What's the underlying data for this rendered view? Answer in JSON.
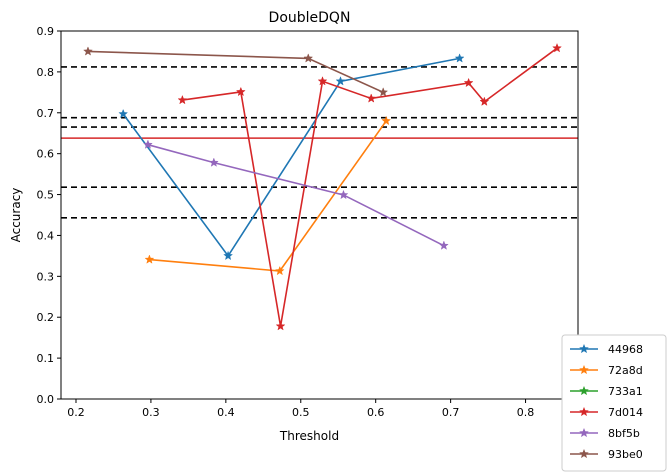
{
  "chart_data": {
    "type": "line",
    "title": "DoubleDQN",
    "xlabel": "Threshold",
    "ylabel": "Accuracy",
    "xlim": [
      0.18,
      0.87
    ],
    "ylim": [
      0.0,
      0.9
    ],
    "xticks": [
      0.2,
      0.3,
      0.4,
      0.5,
      0.6,
      0.7,
      0.8
    ],
    "xtick_labels": [
      "0.2",
      "0.3",
      "0.4",
      "0.5",
      "0.6",
      "0.7",
      "0.8"
    ],
    "yticks": [
      0.0,
      0.1,
      0.2,
      0.3,
      0.4,
      0.5,
      0.6,
      0.7,
      0.8,
      0.9
    ],
    "ytick_labels": [
      "0.0",
      "0.1",
      "0.2",
      "0.3",
      "0.4",
      "0.5",
      "0.6",
      "0.7",
      "0.8",
      "0.9"
    ],
    "grid": false,
    "legend_position": "outside-bottom-right",
    "hlines_dashed": [
      0.812,
      0.688,
      0.665,
      0.518,
      0.443
    ],
    "hlines_dashed_color": "#000000",
    "hline_solid": 0.638,
    "hline_solid_color": "#d62728",
    "marker": "star",
    "series": [
      {
        "name": "44968",
        "color": "#1f77b4",
        "x": [
          0.263,
          0.403,
          0.553,
          0.712
        ],
        "y": [
          0.697,
          0.35,
          0.777,
          0.833
        ]
      },
      {
        "name": "72a8d",
        "color": "#ff7f0e",
        "x": [
          0.298,
          0.472,
          0.614
        ],
        "y": [
          0.341,
          0.313,
          0.68
        ]
      },
      {
        "name": "733a1",
        "color": "#2ca02c",
        "x": [],
        "y": []
      },
      {
        "name": "7d014",
        "color": "#d62728",
        "x": [
          0.342,
          0.42,
          0.473,
          0.529,
          0.594,
          0.724,
          0.745,
          0.842
        ],
        "y": [
          0.731,
          0.751,
          0.178,
          0.777,
          0.735,
          0.773,
          0.727,
          0.858
        ]
      },
      {
        "name": "8bf5b",
        "color": "#9467bd",
        "x": [
          0.296,
          0.384,
          0.557,
          0.691
        ],
        "y": [
          0.622,
          0.578,
          0.499,
          0.375
        ]
      },
      {
        "name": "93be0",
        "color": "#8c564b",
        "x": [
          0.216,
          0.51,
          0.61
        ],
        "y": [
          0.85,
          0.833,
          0.75
        ]
      }
    ]
  }
}
